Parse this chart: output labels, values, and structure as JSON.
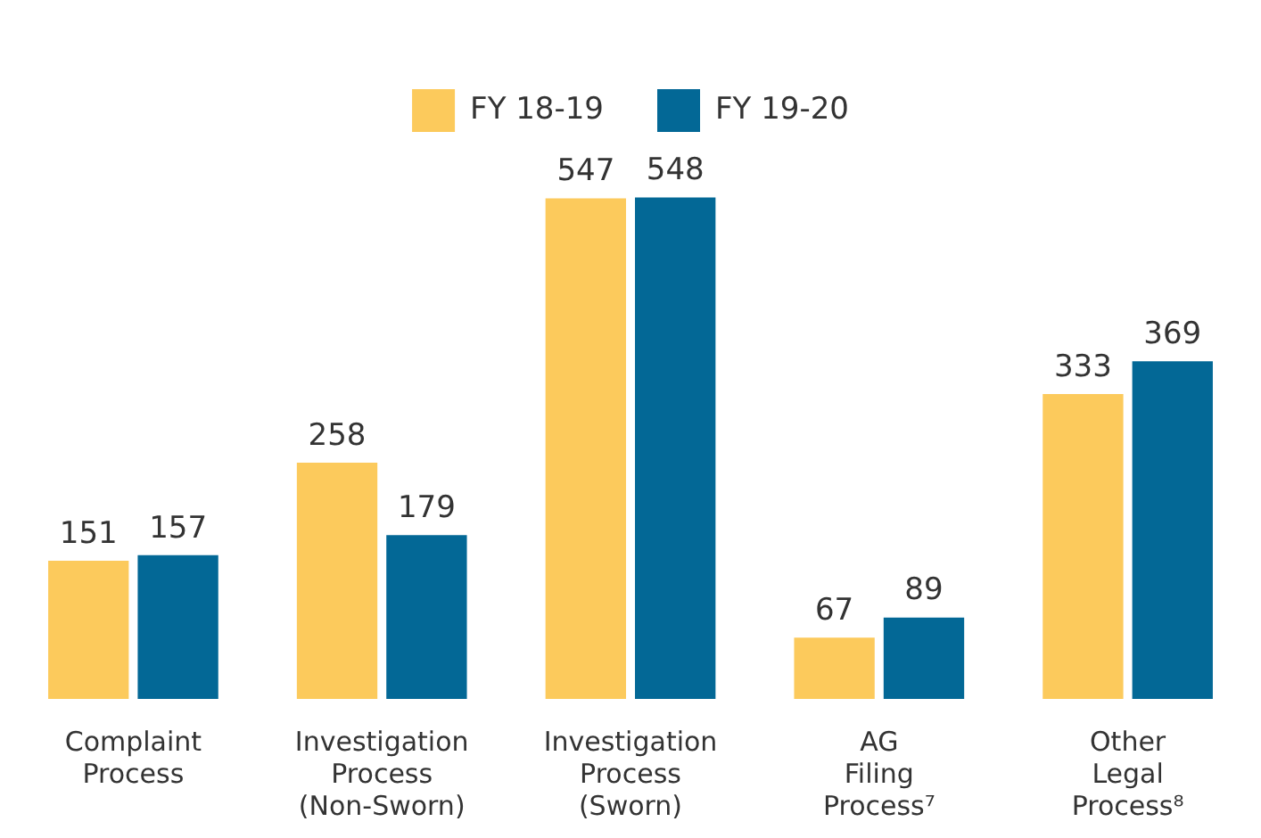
{
  "chart_data": {
    "type": "bar",
    "categories": [
      "Complaint\nProcess",
      "Investigation\nProcess\n(Non-Sworn)",
      "Investigation\nProcess\n(Sworn)",
      "AG\nFiling\nProcess⁷",
      "Other\nLegal\nProcess⁸"
    ],
    "series": [
      {
        "name": "FY 18-19",
        "color": "#fcca5c",
        "values": [
          151,
          258,
          547,
          67,
          333
        ]
      },
      {
        "name": "FY 19-20",
        "color": "#036896",
        "values": [
          157,
          179,
          548,
          89,
          369
        ]
      }
    ],
    "data_labels": true,
    "legend": "top",
    "grid": false
  }
}
